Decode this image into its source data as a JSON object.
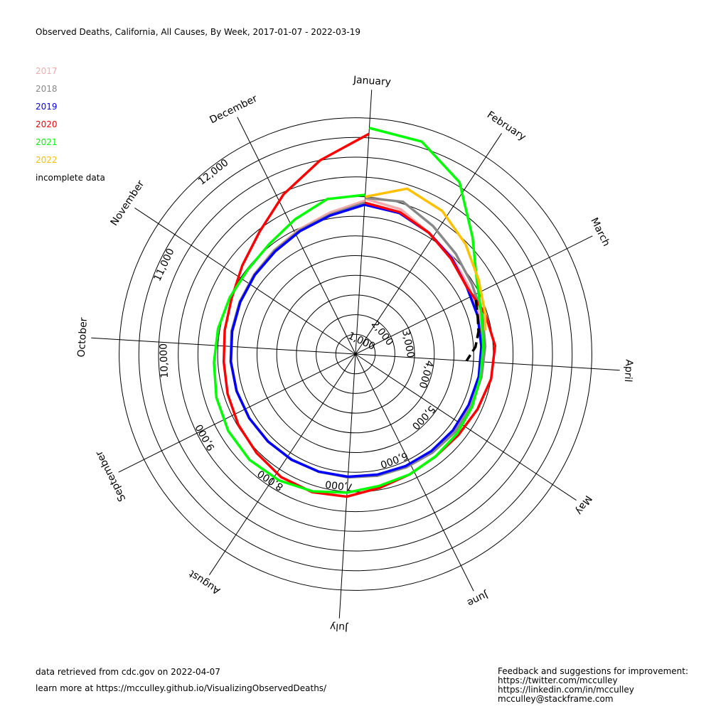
{
  "title": "Observed Deaths, California, All Causes, By Week, 2017-01-07 - 2022-03-19",
  "footer": {
    "retrieved": "data retrieved from cdc.gov on 2022-04-07",
    "learn_more": "learn more at https://mcculley.github.io/VisualizingObservedDeaths/",
    "feedback_lines": [
      "Feedback and suggestions for improvement:",
      "https://twitter.com/mcculley",
      "https://linkedin.com/in/mcculley",
      "mcculley@stackframe.com"
    ]
  },
  "chart_data": {
    "type": "radial-line",
    "title": "Observed Deaths, California, All Causes, By Week, 2017-01-07 - 2022-03-19",
    "months": [
      "January",
      "February",
      "March",
      "April",
      "May",
      "June",
      "July",
      "August",
      "September",
      "October",
      "November",
      "December"
    ],
    "ring_values": [
      1000,
      2000,
      3000,
      4000,
      5000,
      6000,
      7000,
      8000,
      9000,
      10000,
      11000,
      12000
    ],
    "ring_labels": [
      "1,000",
      "2,000",
      "3,000",
      "4,000",
      "5,000",
      "6,000",
      "7,000",
      "8,000",
      "9,000",
      "10,000",
      "11,000",
      "12,000"
    ],
    "r_range": [
      0,
      12000
    ],
    "legend_placement": "top-left",
    "series": [
      {
        "name": "2017",
        "color": "#f4aaaa",
        "weeks": [
          1,
          3,
          5,
          7,
          9,
          11,
          13,
          15,
          17,
          19,
          21,
          23,
          25,
          27,
          29,
          31,
          33,
          35,
          37,
          39,
          41,
          43,
          45,
          47,
          49,
          51,
          53
        ],
        "values": [
          7900,
          7700,
          7200,
          6950,
          6700,
          6600,
          6500,
          6450,
          6400,
          6380,
          6300,
          6280,
          6250,
          6250,
          6260,
          6270,
          6290,
          6310,
          6330,
          6350,
          6380,
          6450,
          6550,
          6700,
          6950,
          7300,
          7800
        ]
      },
      {
        "name": "2018",
        "color": "#888888",
        "weeks": [
          1,
          3,
          5,
          7,
          9,
          11,
          13,
          15,
          17,
          19,
          21,
          23,
          25,
          27,
          29,
          31,
          33,
          35,
          37,
          39,
          41,
          43,
          45,
          47,
          49,
          51,
          53
        ],
        "values": [
          7950,
          8100,
          7600,
          7200,
          6900,
          6750,
          6600,
          6500,
          6450,
          6420,
          6350,
          6300,
          6280,
          6270,
          6260,
          6260,
          6280,
          6300,
          6320,
          6350,
          6400,
          6450,
          6530,
          6680,
          6900,
          7200,
          7700
        ]
      },
      {
        "name": "2019",
        "color": "#0000ff",
        "weeks": [
          1,
          3,
          5,
          7,
          9,
          11,
          13,
          15,
          17,
          19,
          21,
          23,
          25,
          27,
          29,
          31,
          33,
          35,
          37,
          39,
          41,
          43,
          45,
          47,
          49,
          51,
          53
        ],
        "values": [
          7600,
          7500,
          7200,
          6900,
          6600,
          6500,
          6400,
          6360,
          6300,
          6280,
          6250,
          6230,
          6220,
          6240,
          6250,
          6270,
          6280,
          6300,
          6320,
          6340,
          6370,
          6420,
          6500,
          6620,
          6850,
          7150,
          7600
        ]
      },
      {
        "name": "2020",
        "color": "#ff0000",
        "weeks": [
          1,
          3,
          5,
          7,
          9,
          11,
          13,
          15,
          17,
          19,
          21,
          23,
          25,
          27,
          29,
          31,
          33,
          35,
          37,
          39,
          41,
          43,
          45,
          47,
          49,
          51,
          53
        ],
        "values": [
          7700,
          7550,
          7200,
          6850,
          6600,
          6900,
          7100,
          7000,
          6800,
          6650,
          6600,
          6700,
          6900,
          7250,
          7350,
          7300,
          7100,
          6950,
          6800,
          6700,
          6750,
          6900,
          7300,
          7900,
          8900,
          10000,
          11200
        ]
      },
      {
        "name": "2021",
        "color": "#00ff00",
        "weeks": [
          1,
          3,
          5,
          7,
          9,
          11,
          13,
          15,
          17,
          19,
          21,
          23,
          25,
          27,
          29,
          31,
          33,
          35,
          37,
          39,
          41,
          43,
          45,
          47,
          49,
          51,
          53
        ],
        "values": [
          11500,
          11300,
          10200,
          8400,
          7200,
          6700,
          6500,
          6450,
          6500,
          6550,
          6600,
          6700,
          6800,
          7050,
          7300,
          7500,
          7600,
          7550,
          7400,
          7200,
          7100,
          7000,
          6950,
          7100,
          7500,
          8000,
          8100
        ]
      },
      {
        "name": "2022",
        "color": "#ffc000",
        "weeks": [
          1,
          3,
          5,
          7,
          9,
          11,
          12
        ],
        "values": [
          8000,
          8800,
          8500,
          7900,
          7300,
          6900,
          6700
        ]
      },
      {
        "name": "incomplete data",
        "color": "#000000",
        "dashed": true,
        "weeks": [
          10,
          11,
          12,
          13,
          14
        ],
        "values": [
          6700,
          6500,
          6350,
          6100,
          5650
        ]
      }
    ]
  }
}
